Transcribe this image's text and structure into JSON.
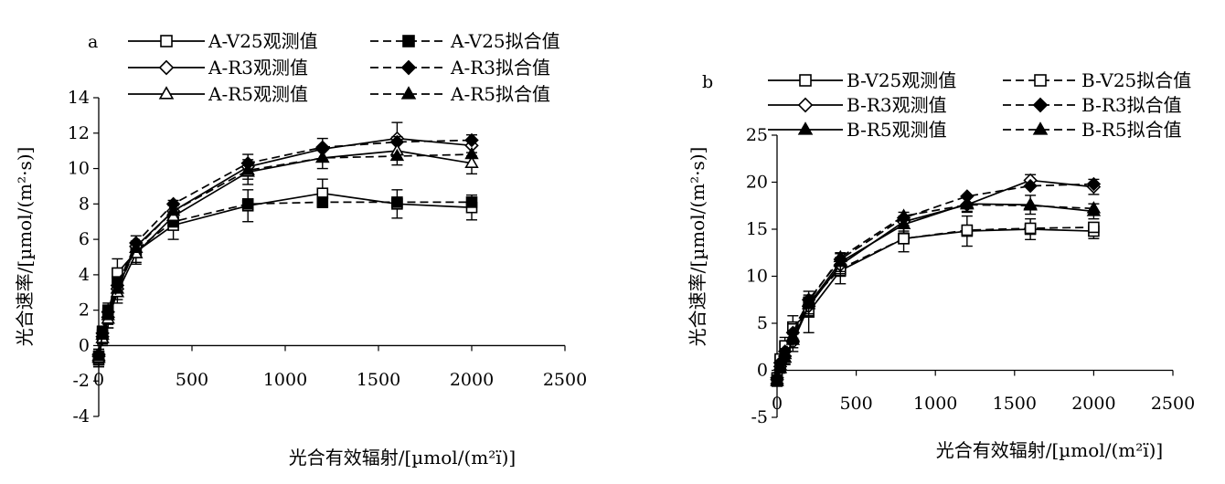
{
  "chart_data": [
    {
      "type": "line",
      "panel_label": "a",
      "xlabel": "光合有效辐射/[µmol/(m²ï)]",
      "ylabel": "光合速率/[µmol/(m²·s)]",
      "xlim": [
        0,
        2500
      ],
      "ylim": [
        -4,
        14
      ],
      "xticks": [
        0,
        500,
        1000,
        1500,
        2000,
        2500
      ],
      "yticks": [
        -4,
        -2,
        0,
        2,
        4,
        6,
        8,
        10,
        12,
        14
      ],
      "x": [
        0,
        20,
        50,
        100,
        200,
        400,
        800,
        1200,
        1600,
        2000
      ],
      "grid": false,
      "legend_position": "top",
      "series": [
        {
          "name": "A-V25观测值",
          "dash": false,
          "marker": "square-open",
          "values": [
            -0.8,
            0.6,
            1.8,
            4.1,
            5.3,
            6.8,
            7.9,
            8.6,
            8.0,
            7.8
          ],
          "errors": [
            0.4,
            0.5,
            0.6,
            0.8,
            0.6,
            0.8,
            0.9,
            0.8,
            0.8,
            0.7
          ]
        },
        {
          "name": "A-V25拟合值",
          "dash": true,
          "marker": "square-filled",
          "values": [
            -0.6,
            0.8,
            2.0,
            3.6,
            5.4,
            7.0,
            8.0,
            8.1,
            8.1,
            8.1
          ],
          "errors": [
            0,
            0,
            0,
            0,
            0,
            0,
            0,
            0,
            0,
            0
          ]
        },
        {
          "name": "A-R3观测值",
          "dash": false,
          "marker": "diamond-open",
          "values": [
            -0.6,
            0.5,
            1.6,
            3.2,
            5.6,
            7.6,
            10.1,
            11.1,
            11.7,
            11.3
          ],
          "errors": [
            0.4,
            0.4,
            0.6,
            0.6,
            0.6,
            0.6,
            0.7,
            0.6,
            0.9,
            0.6
          ]
        },
        {
          "name": "A-R3拟合值",
          "dash": true,
          "marker": "diamond-filled",
          "values": [
            -0.5,
            0.7,
            1.9,
            3.4,
            5.8,
            8.0,
            10.3,
            11.2,
            11.5,
            11.6
          ],
          "errors": [
            0,
            0,
            0,
            0,
            0,
            0,
            0,
            0,
            0,
            0
          ]
        },
        {
          "name": "A-R5观测值",
          "dash": false,
          "marker": "triangle-open",
          "values": [
            -0.7,
            0.4,
            1.5,
            3.0,
            5.2,
            7.3,
            9.8,
            10.6,
            11.0,
            10.3
          ],
          "errors": [
            0.4,
            0.4,
            0.5,
            0.6,
            0.6,
            0.6,
            0.7,
            0.6,
            0.8,
            0.6
          ]
        },
        {
          "name": "A-R5拟合值",
          "dash": true,
          "marker": "triangle-filled",
          "values": [
            -0.6,
            0.6,
            1.7,
            3.2,
            5.5,
            7.6,
            9.9,
            10.6,
            10.7,
            10.8
          ],
          "errors": [
            0,
            0,
            0,
            0,
            0,
            0,
            0,
            0,
            0,
            0
          ]
        }
      ]
    },
    {
      "type": "line",
      "panel_label": "b",
      "xlabel": "光合有效辐射/[µmol/(m²ï)]",
      "ylabel": "光合速率/[µmol/(m²·s)]",
      "xlim": [
        0,
        2500
      ],
      "ylim": [
        -5,
        25
      ],
      "xticks": [
        0,
        500,
        1000,
        1500,
        2000,
        2500
      ],
      "yticks": [
        -5,
        0,
        5,
        10,
        15,
        20,
        25
      ],
      "x": [
        0,
        20,
        50,
        100,
        200,
        400,
        800,
        1200,
        1600,
        2000
      ],
      "grid": false,
      "legend_position": "top",
      "series": [
        {
          "name": "B-V25观测值",
          "dash": false,
          "marker": "square-open",
          "values": [
            -1.0,
            1.0,
            2.5,
            4.6,
            6.2,
            10.6,
            14.0,
            14.8,
            15.0,
            14.8
          ],
          "errors": [
            0.6,
            0.7,
            1.0,
            1.2,
            2.2,
            1.4,
            1.4,
            1.6,
            1.1,
            0.8
          ]
        },
        {
          "name": "B-V25拟合值",
          "dash": true,
          "marker": "square-open",
          "values": [
            -0.8,
            1.2,
            2.6,
            4.4,
            7.2,
            10.8,
            14.0,
            14.9,
            15.1,
            15.2
          ],
          "errors": [
            0,
            0,
            0,
            0,
            0,
            0,
            0,
            0,
            0,
            0
          ]
        },
        {
          "name": "B-R3观测值",
          "dash": false,
          "marker": "diamond-open",
          "values": [
            -1.0,
            0.4,
            1.5,
            3.0,
            6.8,
            11.2,
            15.8,
            17.6,
            20.2,
            19.5
          ],
          "errors": [
            0.5,
            0.6,
            0.8,
            1.0,
            1.0,
            1.2,
            1.0,
            0.8,
            0.6,
            0.8
          ]
        },
        {
          "name": "B-R3拟合值",
          "dash": true,
          "marker": "diamond-filled",
          "values": [
            -0.8,
            0.8,
            2.0,
            4.0,
            7.5,
            11.8,
            16.2,
            18.5,
            19.6,
            19.8
          ],
          "errors": [
            0,
            0,
            0,
            0,
            0,
            0,
            0,
            0,
            0,
            0
          ]
        },
        {
          "name": "B-R5观测值",
          "dash": false,
          "marker": "triangle-filled",
          "values": [
            -1.2,
            0.2,
            1.3,
            3.2,
            7.0,
            11.5,
            15.5,
            17.7,
            17.6,
            16.9
          ],
          "errors": [
            0.5,
            0.5,
            0.7,
            0.8,
            1.0,
            1.0,
            0.9,
            0.8,
            1.0,
            0.8
          ]
        },
        {
          "name": "B-R5拟合值",
          "dash": true,
          "marker": "triangle-filled",
          "values": [
            -1.0,
            0.5,
            1.7,
            3.6,
            7.3,
            12.0,
            16.4,
            17.6,
            17.5,
            17.2
          ],
          "errors": [
            0,
            0,
            0,
            0,
            0,
            0,
            0,
            0,
            0,
            0
          ]
        }
      ]
    }
  ]
}
